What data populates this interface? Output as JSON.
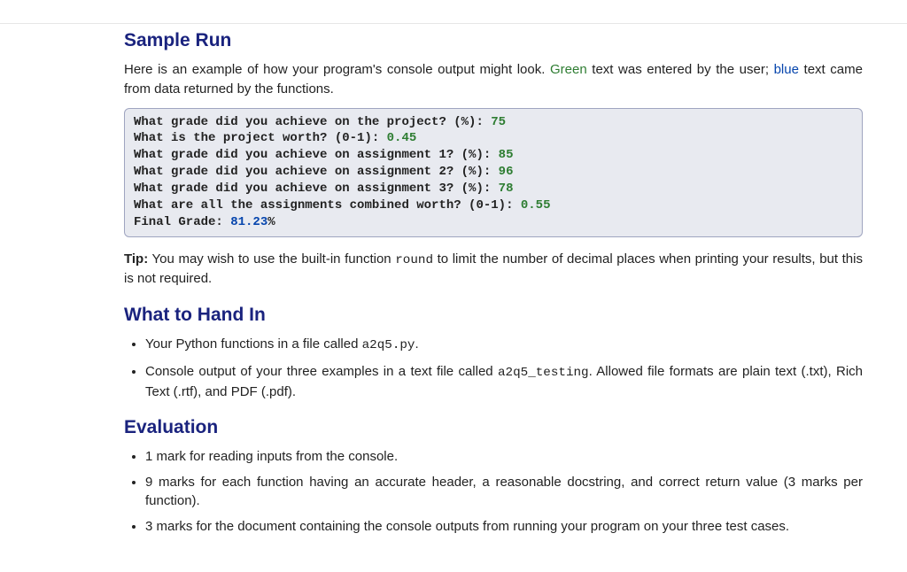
{
  "headings": {
    "sample_run": "Sample Run",
    "hand_in": "What to Hand In",
    "evaluation": "Evaluation"
  },
  "intro": {
    "pre": "Here is an example of how your program's console output might look. ",
    "green_word": "Green",
    "mid": " text was entered by the user; ",
    "blue_word": "blue",
    "post": " text came from data returned by the functions."
  },
  "console": {
    "l1_prompt": "What grade did you achieve on the project? (%): ",
    "l1_input": "75",
    "l2_prompt": "What is the project worth? (0-1): ",
    "l2_input": "0.45",
    "l3_prompt": "What grade did you achieve on assignment 1? (%): ",
    "l3_input": "85",
    "l4_prompt": "What grade did you achieve on assignment 2? (%): ",
    "l4_input": "96",
    "l5_prompt": "What grade did you achieve on assignment 3? (%): ",
    "l5_input": "78",
    "l6_prompt": "What are all the assignments combined worth? (0-1): ",
    "l6_input": "0.55",
    "l7_label": "Final Grade: ",
    "l7_value": "81.23",
    "l7_suffix": "%"
  },
  "tip": {
    "label": "Tip:",
    "pre": " You may wish to use the built-in function ",
    "code": "round",
    "post": " to limit the number of decimal places when printing your results, but this is not required."
  },
  "hand_in": {
    "item1_pre": "Your Python functions in a file called ",
    "item1_code": "a2q5.py",
    "item1_post": ".",
    "item2_pre": "Console output of your three examples in a text file called ",
    "item2_code": "a2q5_testing",
    "item2_post": ". Allowed file formats are plain text (.txt), Rich Text (.rtf), and PDF (.pdf)."
  },
  "evaluation": {
    "item1": "1 mark for reading inputs from the console.",
    "item2": "9 marks for each function having an accurate header, a reasonable docstring, and correct return value (3 marks per function).",
    "item3": "3 marks for the document containing the console outputs from running your program on your three test cases."
  },
  "colors": {
    "heading": "#1a237e",
    "user_input": "#2e7d32",
    "function_output": "#0645ad",
    "console_bg": "#e8eaf0",
    "console_border": "#9fa5c0"
  }
}
